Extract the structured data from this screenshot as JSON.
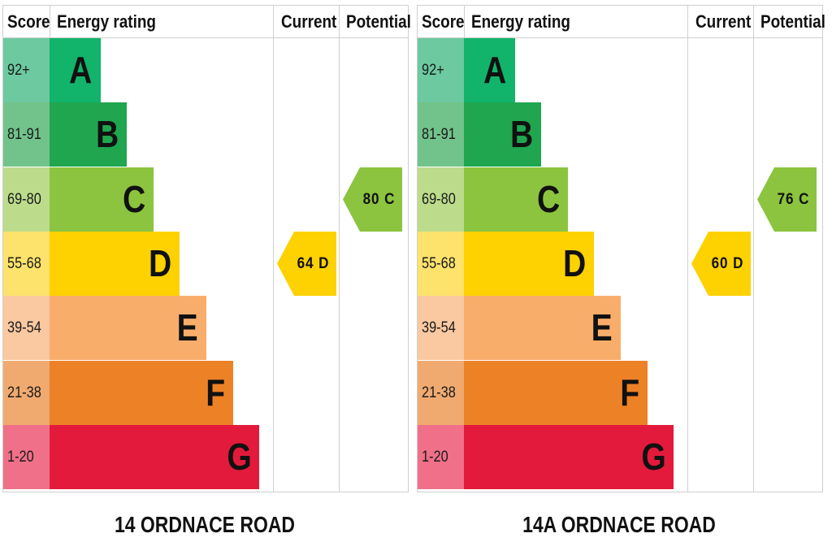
{
  "chart_data": [
    {
      "type": "table",
      "title": "14 ORDNACE ROAD",
      "columns": [
        "Score",
        "Energy rating",
        "Current",
        "Potential"
      ],
      "bands": [
        {
          "score": "92+",
          "rating": "A",
          "color": "#11b46a",
          "score_color": "#6cc9a0",
          "width_frac": 0.23
        },
        {
          "score": "81-91",
          "rating": "B",
          "color": "#1fa64f",
          "score_color": "#72c38b",
          "width_frac": 0.35
        },
        {
          "score": "69-80",
          "rating": "C",
          "color": "#8cc43f",
          "score_color": "#bcdc8b",
          "width_frac": 0.47
        },
        {
          "score": "55-68",
          "rating": "D",
          "color": "#fed100",
          "score_color": "#fde26c",
          "width_frac": 0.59
        },
        {
          "score": "39-54",
          "rating": "E",
          "color": "#f9ad6b",
          "score_color": "#fac8a1",
          "width_frac": 0.71
        },
        {
          "score": "21-38",
          "rating": "F",
          "color": "#ed8126",
          "score_color": "#f0aa70",
          "width_frac": 0.83
        },
        {
          "score": "1-20",
          "rating": "G",
          "color": "#e31a3b",
          "score_color": "#ef7088",
          "width_frac": 0.95
        }
      ],
      "current": {
        "value": 64,
        "rating": "D",
        "label": "64 D"
      },
      "potential": {
        "value": 80,
        "rating": "C",
        "label": "80 C"
      }
    },
    {
      "type": "table",
      "title": "14A ORDNACE ROAD",
      "columns": [
        "Score",
        "Energy rating",
        "Current",
        "Potential"
      ],
      "bands": [
        {
          "score": "92+",
          "rating": "A",
          "color": "#11b46a",
          "score_color": "#6cc9a0",
          "width_frac": 0.23
        },
        {
          "score": "81-91",
          "rating": "B",
          "color": "#1fa64f",
          "score_color": "#72c38b",
          "width_frac": 0.35
        },
        {
          "score": "69-80",
          "rating": "C",
          "color": "#8cc43f",
          "score_color": "#bcdc8b",
          "width_frac": 0.47
        },
        {
          "score": "55-68",
          "rating": "D",
          "color": "#fed100",
          "score_color": "#fde26c",
          "width_frac": 0.59
        },
        {
          "score": "39-54",
          "rating": "E",
          "color": "#f9ad6b",
          "score_color": "#fac8a1",
          "width_frac": 0.71
        },
        {
          "score": "21-38",
          "rating": "F",
          "color": "#ed8126",
          "score_color": "#f0aa70",
          "width_frac": 0.83
        },
        {
          "score": "1-20",
          "rating": "G",
          "color": "#e31a3b",
          "score_color": "#ef7088",
          "width_frac": 0.95
        }
      ],
      "current": {
        "value": 60,
        "rating": "D",
        "label": "60 D"
      },
      "potential": {
        "value": 76,
        "rating": "C",
        "label": "76 C"
      }
    }
  ]
}
